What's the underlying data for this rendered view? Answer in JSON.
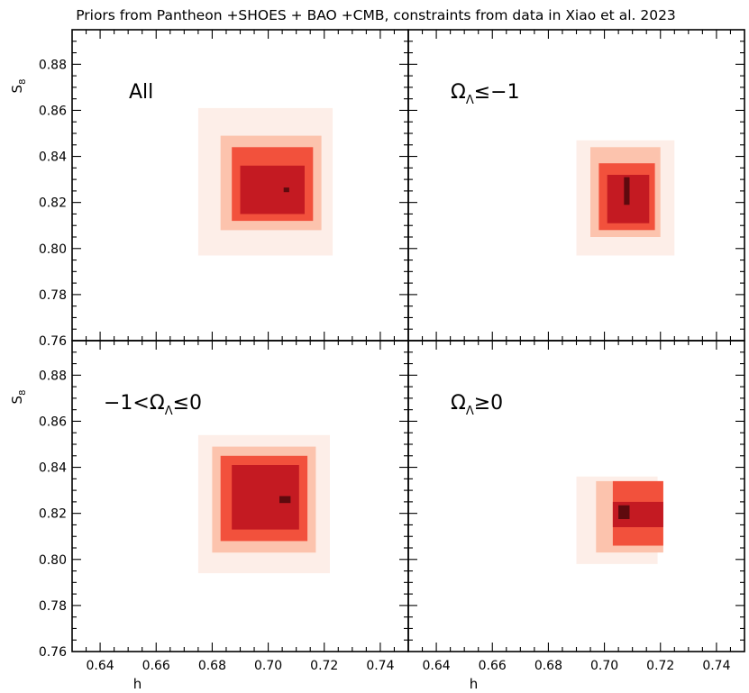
{
  "chart_data": {
    "type": "heatmap",
    "title": "Priors from Pantheon +SHOES + BAO +CMB, constraints from data in Xiao et al. 2023",
    "xlabel": "h",
    "ylabel": "S",
    "ylabel_subscript": "8",
    "xlim": [
      0.63,
      0.75
    ],
    "ylim": [
      0.76,
      0.895
    ],
    "xticks": [
      "0.64",
      "0.66",
      "0.68",
      "0.70",
      "0.72",
      "0.74"
    ],
    "yticks": [
      "0.76",
      "0.78",
      "0.80",
      "0.82",
      "0.84",
      "0.86",
      "0.88"
    ],
    "grid": false,
    "level_colors": [
      "#fdeee8",
      "#fcc3ad",
      "#f2513c",
      "#c41a22",
      "#5e0a0e"
    ],
    "panels": [
      {
        "label": "All",
        "regions": [
          {
            "level": 0,
            "x": [
              0.675,
              0.723
            ],
            "y": [
              0.797,
              0.861
            ]
          },
          {
            "level": 1,
            "x": [
              0.683,
              0.719
            ],
            "y": [
              0.808,
              0.849
            ]
          },
          {
            "level": 2,
            "x": [
              0.687,
              0.716
            ],
            "y": [
              0.812,
              0.844
            ]
          },
          {
            "level": 3,
            "x": [
              0.69,
              0.713
            ],
            "y": [
              0.815,
              0.836
            ]
          },
          {
            "level": 4,
            "x": [
              0.7055,
              0.7075
            ],
            "y": [
              0.8245,
              0.8265
            ]
          }
        ]
      },
      {
        "label": "Ω",
        "label_subscript": "Λ",
        "label_suffix": "≤−1",
        "regions": [
          {
            "level": 0,
            "x": [
              0.69,
              0.725
            ],
            "y": [
              0.797,
              0.847
            ]
          },
          {
            "level": 1,
            "x": [
              0.695,
              0.72
            ],
            "y": [
              0.805,
              0.844
            ]
          },
          {
            "level": 2,
            "x": [
              0.698,
              0.718
            ],
            "y": [
              0.808,
              0.837
            ]
          },
          {
            "level": 3,
            "x": [
              0.701,
              0.716
            ],
            "y": [
              0.811,
              0.832
            ]
          },
          {
            "level": 4,
            "x": [
              0.707,
              0.709
            ],
            "y": [
              0.819,
              0.831
            ]
          }
        ]
      },
      {
        "label": "−1<Ω",
        "label_subscript": "Λ",
        "label_suffix": "≤0",
        "regions": [
          {
            "level": 0,
            "x": [
              0.675,
              0.722
            ],
            "y": [
              0.794,
              0.854
            ]
          },
          {
            "level": 1,
            "x": [
              0.68,
              0.717
            ],
            "y": [
              0.803,
              0.849
            ]
          },
          {
            "level": 2,
            "x": [
              0.683,
              0.714
            ],
            "y": [
              0.808,
              0.845
            ]
          },
          {
            "level": 3,
            "x": [
              0.687,
              0.711
            ],
            "y": [
              0.813,
              0.841
            ]
          },
          {
            "level": 4,
            "x": [
              0.704,
              0.708
            ],
            "y": [
              0.8245,
              0.8275
            ]
          }
        ]
      },
      {
        "label": "Ω",
        "label_subscript": "Λ",
        "label_suffix": "≥0",
        "regions": [
          {
            "level": 0,
            "x": [
              0.69,
              0.719
            ],
            "y": [
              0.798,
              0.836
            ]
          },
          {
            "level": 1,
            "x": [
              0.697,
              0.721
            ],
            "y": [
              0.803,
              0.834
            ]
          },
          {
            "level": 2,
            "x": [
              0.703,
              0.721
            ],
            "y": [
              0.806,
              0.834
            ]
          },
          {
            "level": 3,
            "x": [
              0.703,
              0.721
            ],
            "y": [
              0.814,
              0.825
            ]
          },
          {
            "level": 4,
            "x": [
              0.705,
              0.709
            ],
            "y": [
              0.8175,
              0.8235
            ]
          }
        ]
      }
    ]
  }
}
